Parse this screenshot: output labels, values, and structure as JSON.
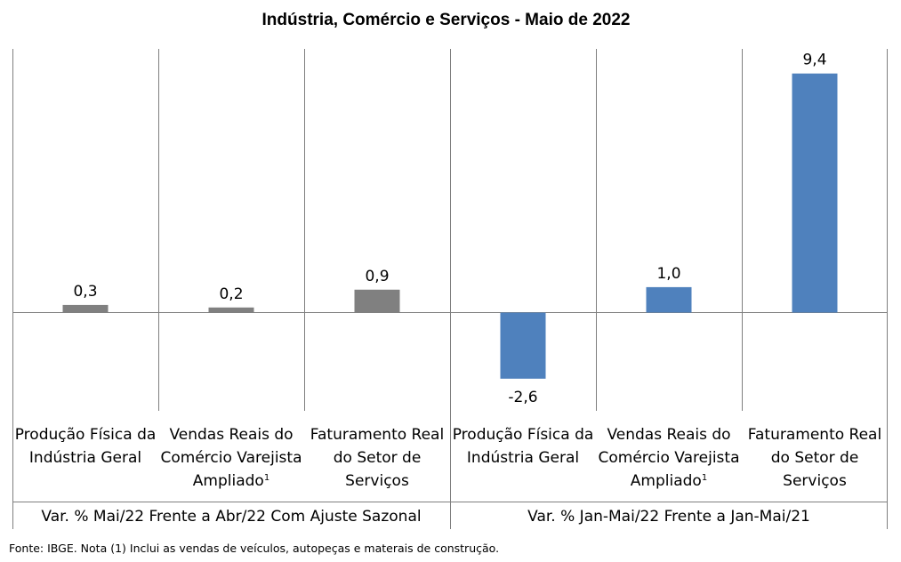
{
  "chart_data": {
    "type": "bar",
    "title": "Indústria, Comércio e Serviços - Maio de 2022",
    "categories": [
      "Produção Física da Indústria Geral",
      "Vendas Reais do Comércio Varejista Ampliado¹",
      "Faturamento Real do Setor de Serviços",
      "Produção Física da Indústria Geral",
      "Vendas Reais do Comércio Varejista Ampliado¹",
      "Faturamento Real do Setor de Serviços"
    ],
    "groups": [
      {
        "label": "Var. % Mai/22 Frente a Abr/22 Com Ajuste Sazonal",
        "categories": [
          0,
          1,
          2
        ],
        "color": "#808080"
      },
      {
        "label": "Var. % Jan-Mai/22 Frente a Jan-Mai/21",
        "categories": [
          3,
          4,
          5
        ],
        "color": "#4f81bd"
      }
    ],
    "values": [
      0.3,
      0.2,
      0.9,
      -2.6,
      1.0,
      9.4
    ],
    "value_labels": [
      "0,3",
      "0,2",
      "0,9",
      "-2,6",
      "1,0",
      "9,4"
    ],
    "ylim": [
      -3.2,
      9.8
    ],
    "grid": false
  },
  "footnote": "Fonte: IBGE. Nota (1) Inclui as vendas de veículos, autopeças e materais de construção."
}
